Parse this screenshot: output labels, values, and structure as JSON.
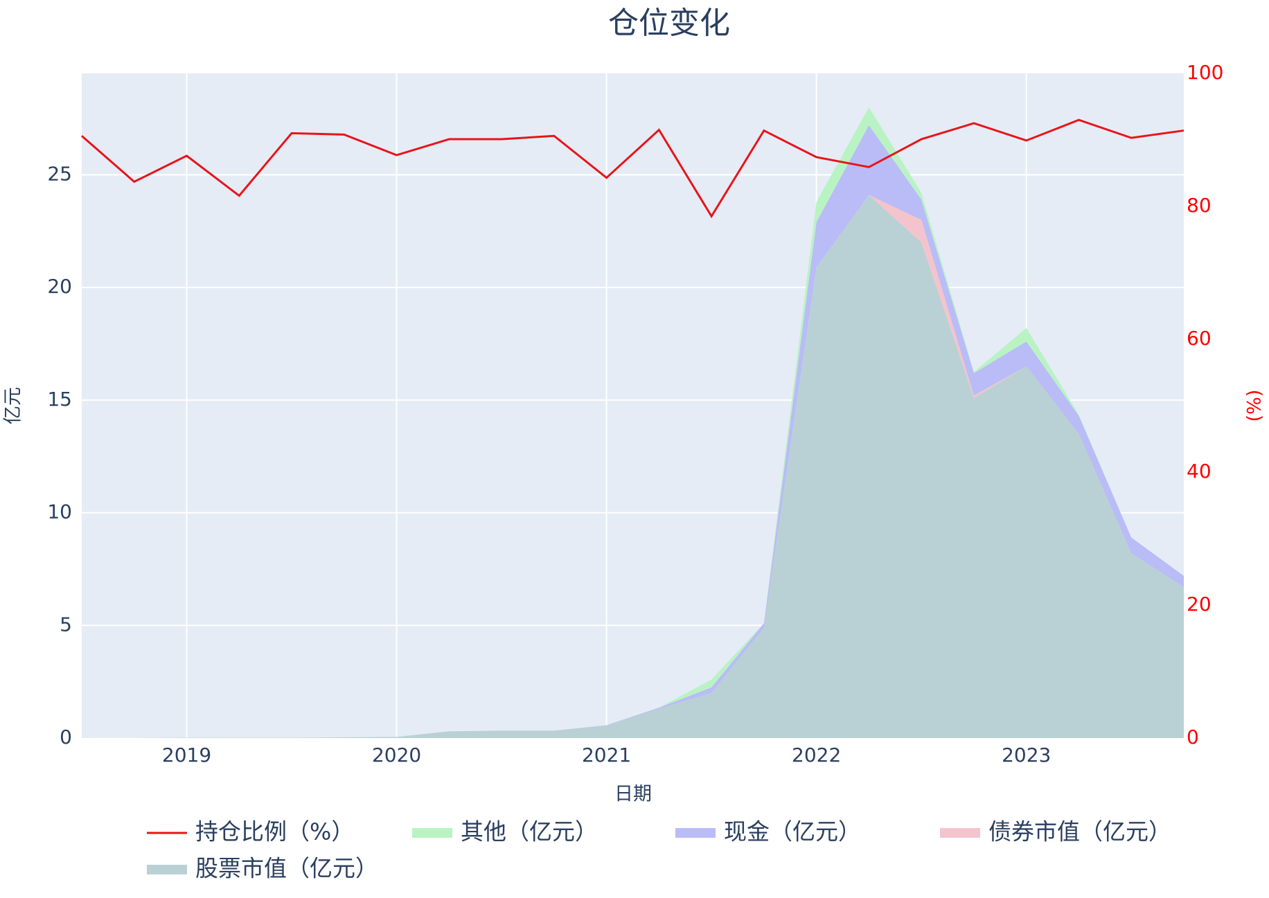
{
  "chart_data": {
    "type": "area",
    "title": "仓位变化",
    "x_label": "日期",
    "y_label": "亿元",
    "y2_label": "(%)",
    "x": [
      2018.5,
      2018.75,
      2019.0,
      2019.25,
      2019.5,
      2019.75,
      2020.0,
      2020.25,
      2020.5,
      2020.75,
      2021.0,
      2021.25,
      2021.5,
      2021.75,
      2022.0,
      2022.25,
      2022.5,
      2022.75,
      2023.0,
      2023.25,
      2023.5,
      2023.75
    ],
    "xlim": [
      2018.5,
      2023.75
    ],
    "xticks": [
      2019,
      2020,
      2021,
      2022,
      2023
    ],
    "ylim": [
      0,
      29.5
    ],
    "yticks": [
      0,
      5,
      10,
      15,
      20,
      25
    ],
    "y2lim": [
      0,
      100
    ],
    "y2ticks": [
      0,
      20,
      40,
      60,
      80,
      100
    ],
    "grid": true,
    "legend": "bottom",
    "series": [
      {
        "name": "持仓比例（%）",
        "type": "line",
        "axis": "y2",
        "color": "#e8141a",
        "values": [
          90.6,
          83.7,
          87.6,
          81.6,
          91.0,
          90.8,
          87.7,
          90.1,
          90.1,
          90.6,
          84.3,
          91.5,
          78.5,
          91.4,
          87.4,
          85.9,
          90.1,
          92.5,
          89.9,
          93.0,
          90.3,
          91.4
        ]
      },
      {
        "name": "其他（亿元）",
        "type": "area",
        "color": "#b9f3c3",
        "values": [
          0,
          0,
          0,
          0,
          0,
          0,
          0,
          0,
          0,
          0,
          0,
          0,
          0.35,
          0,
          0.9,
          0.8,
          0.3,
          0.05,
          0.6,
          0.05,
          0,
          0
        ]
      },
      {
        "name": "现金（亿元）",
        "type": "area",
        "color": "#b9bcf6",
        "values": [
          0,
          0,
          0,
          0,
          0,
          0,
          0,
          0,
          0,
          0,
          0.02,
          0.05,
          0.25,
          0.2,
          2.0,
          3.1,
          0.9,
          1.0,
          1.1,
          0.8,
          0.7,
          0.5
        ]
      },
      {
        "name": "债券市值（亿元）",
        "type": "area",
        "color": "#f4c4cc",
        "values": [
          0,
          0,
          0,
          0,
          0,
          0,
          0,
          0,
          0,
          0,
          0,
          0,
          0,
          0,
          0,
          0,
          1.0,
          0.1,
          0,
          0,
          0,
          0
        ]
      },
      {
        "name": "股票市值（亿元）",
        "type": "area",
        "color": "#b9d1d4",
        "values": [
          0.01,
          0.01,
          0.02,
          0.02,
          0.02,
          0.03,
          0.05,
          0.3,
          0.33,
          0.33,
          0.55,
          1.3,
          2.0,
          4.9,
          20.9,
          24.1,
          22.0,
          15.1,
          16.5,
          13.5,
          8.2,
          6.7
        ]
      }
    ]
  }
}
